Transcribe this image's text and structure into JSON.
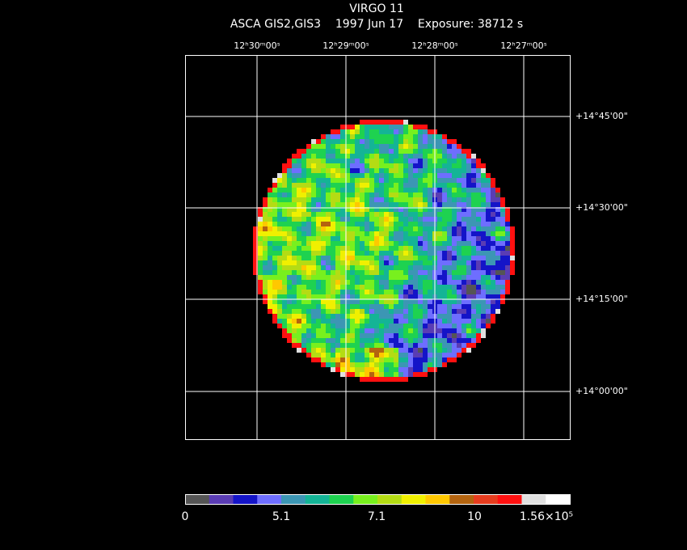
{
  "header": {
    "title": "VIRGO 11",
    "subtitle": "ASCA GIS2,GIS3    1997 Jun 17    Exposure: 38712 s"
  },
  "ra_labels": [
    "12ʰ30ᵐ00ˢ",
    "12ʰ29ᵐ00ˢ",
    "12ʰ28ᵐ00ˢ",
    "12ʰ27ᵐ00ˢ"
  ],
  "dec_labels": [
    "+14°45'00\"",
    "+14°30'00\"",
    "+14°15'00\"",
    "+14°00'00\""
  ],
  "colorbar": {
    "colors": [
      "#555555",
      "#5a3cb4",
      "#1414c8",
      "#6e6eff",
      "#3c96b4",
      "#14b496",
      "#1ed250",
      "#78f01e",
      "#b4dc14",
      "#f0f000",
      "#ffc800",
      "#b4640f",
      "#e63c1e",
      "#ff1010",
      "#e0e0e0",
      "#ffffff"
    ],
    "labels": [
      "0",
      "5.1",
      "7.1",
      "10",
      "1.56×10⁵"
    ]
  }
}
